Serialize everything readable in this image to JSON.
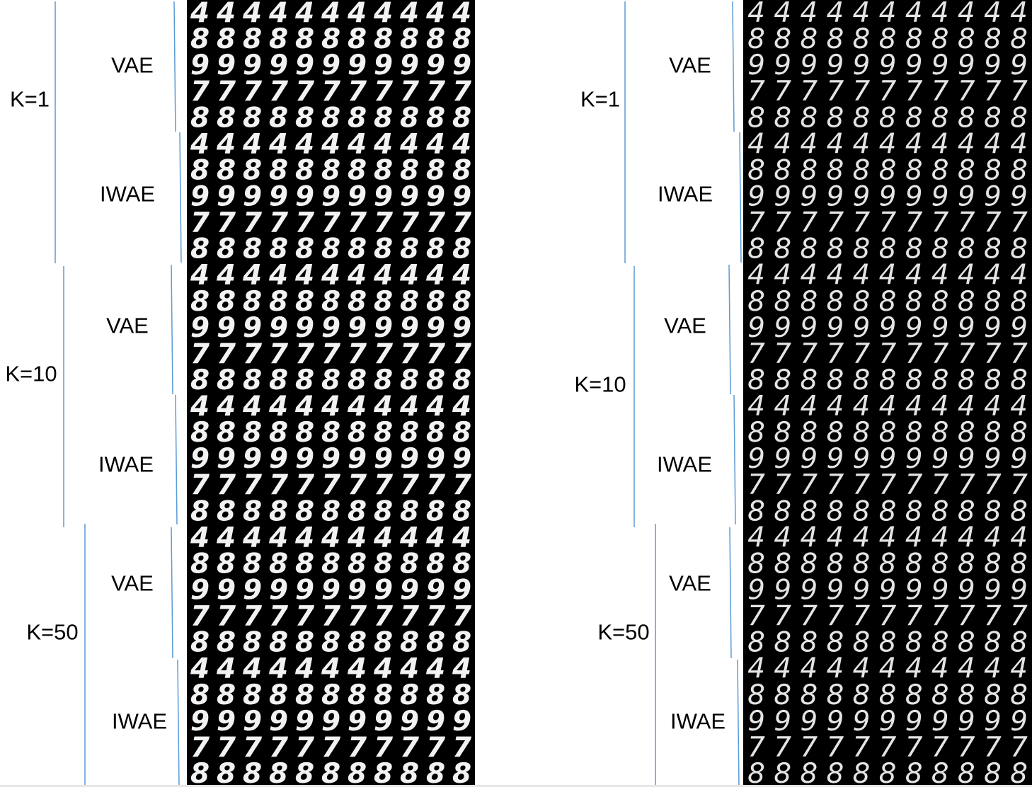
{
  "panels": [
    {
      "id": "left",
      "k_groups": [
        {
          "label": "K=1",
          "methods": [
            {
              "label": "VAE"
            },
            {
              "label": "IWAE"
            }
          ]
        },
        {
          "label": "K=10",
          "methods": [
            {
              "label": "VAE"
            },
            {
              "label": "IWAE"
            }
          ]
        },
        {
          "label": "K=50",
          "methods": [
            {
              "label": "VAE"
            },
            {
              "label": "IWAE"
            }
          ]
        }
      ]
    },
    {
      "id": "right",
      "k_groups": [
        {
          "label": "K=1",
          "methods": [
            {
              "label": "VAE"
            },
            {
              "label": "IWAE"
            }
          ]
        },
        {
          "label": "K=10",
          "methods": [
            {
              "label": "VAE"
            },
            {
              "label": "IWAE"
            }
          ]
        },
        {
          "label": "K=50",
          "methods": [
            {
              "label": "VAE"
            },
            {
              "label": "IWAE"
            }
          ]
        }
      ]
    }
  ],
  "digit_block": {
    "rows": [
      "4",
      "8",
      "9",
      "7",
      "8"
    ],
    "columns_per_row": 11
  },
  "colors": {
    "bracket_line": "#5b9bd5",
    "grid_background": "#000000",
    "digit_stroke": "#f2f2f2",
    "label_text": "#000000"
  }
}
